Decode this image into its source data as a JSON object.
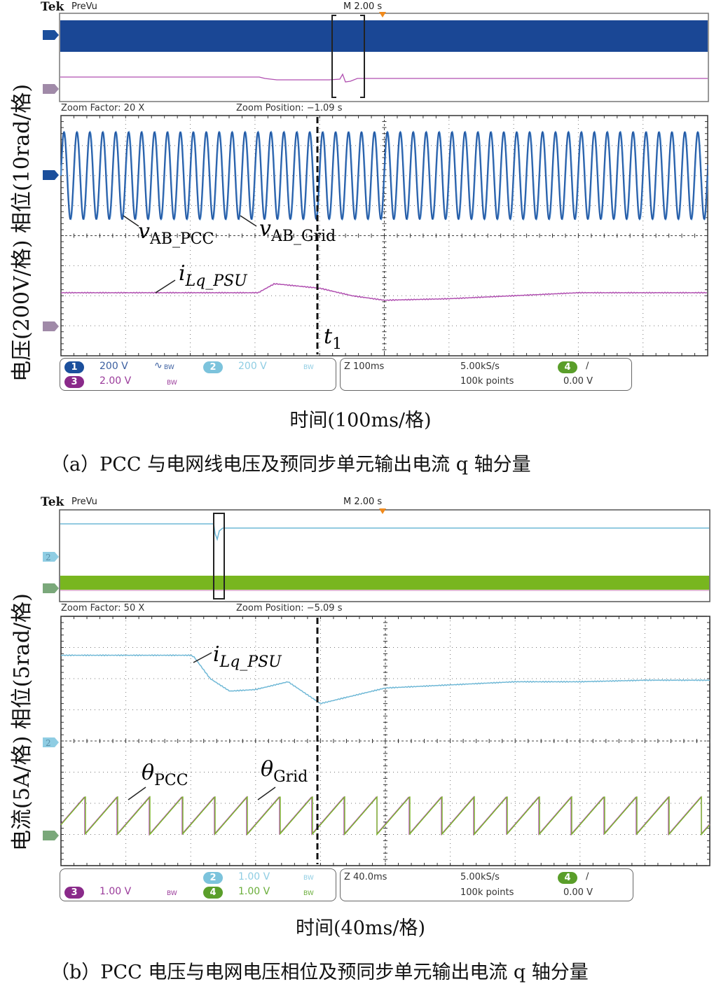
{
  "panel_a": {
    "header": {
      "brand": "Tek",
      "mode": "PreVu",
      "timebase": "M 2.00 s"
    },
    "zoom_info": {
      "factor": "Zoom Factor: 20 X",
      "position": "Zoom Position: −1.09 s"
    },
    "ylabel": "电压(200V/格)    相位(10rad/格)",
    "xlabel": "时间(100ms/格)",
    "caption": "（a）PCC 与电网线电压及预同步单元输出电流 q 轴分量",
    "annotations": {
      "v_pcc": "v",
      "v_pcc_sub": "AB_PCC",
      "v_grid": "v",
      "v_grid_sub": "AB_Grid",
      "i_lq": "i",
      "i_lq_sub": "Lq_PSU",
      "t1": "t",
      "t1_sub": "1"
    },
    "status": {
      "ch1": {
        "num": "1",
        "scale": "200 V",
        "coupling": "∿",
        "bw": "BW",
        "color": "#1b4f9c"
      },
      "ch2": {
        "num": "2",
        "scale": "200 V",
        "bw": "BW",
        "color": "#7cc3dc"
      },
      "ch3": {
        "num": "3",
        "scale": "2.00 V",
        "bw": "BW",
        "color": "#8a2a8a"
      },
      "horiz": {
        "zoom": "Z 100ms",
        "rate": "5.00kS/s",
        "points": "100k points"
      },
      "trigger": {
        "ch": "4",
        "slope": "∕",
        "level": "0.00 V",
        "color": "#5a9e2a"
      }
    },
    "markers": {
      "ch1": "1",
      "ch3": "3"
    }
  },
  "panel_b": {
    "header": {
      "brand": "Tek",
      "mode": "PreVu",
      "timebase": "M 2.00 s"
    },
    "zoom_info": {
      "factor": "Zoom Factor: 50 X",
      "position": "Zoom Position: −5.09 s"
    },
    "ylabel": "电流(5A/格)    相位(5rad/格)",
    "xlabel": "时间(40ms/格)",
    "caption": "（b）PCC 电压与电网电压相位及预同步单元输出电流 q 轴分量",
    "annotations": {
      "i_lq": "i",
      "i_lq_sub": "Lq_PSU",
      "theta_pcc": "θ",
      "theta_pcc_sub": "PCC",
      "theta_grid": "θ",
      "theta_grid_sub": "Grid"
    },
    "status": {
      "ch2": {
        "num": "2",
        "scale": "1.00 V",
        "bw": "BW",
        "color": "#7cc3dc"
      },
      "ch3": {
        "num": "3",
        "scale": "1.00 V",
        "bw": "BW",
        "color": "#8a2a8a"
      },
      "ch4": {
        "num": "4",
        "scale": "1.00 V",
        "bw": "BW",
        "color": "#5a9e2a"
      },
      "horiz": {
        "zoom": "Z 40.0ms",
        "rate": "5.00kS/s",
        "points": "100k points"
      },
      "trigger": {
        "ch": "4",
        "slope": "∕",
        "level": "0.00 V",
        "color": "#5a9e2a"
      }
    },
    "markers": {
      "ch2": "2",
      "ch4": "4"
    }
  },
  "chart_data": [
    {
      "type": "line",
      "title": "(a) PCC and grid line voltage, PSU output current q-axis component",
      "xlabel": "Time (100ms/div)",
      "ylabel": "Voltage (200V/div), Phase (10rad/div)",
      "x_divisions": 10,
      "y_divisions": 8,
      "grid": true,
      "x_unit_per_div_ms": 100,
      "series": [
        {
          "name": "v_AB_PCC",
          "kind": "sine",
          "frequency_hz": 50,
          "amplitude_div": 1.45,
          "offset_div": 6.0,
          "color": "#4a86c8"
        },
        {
          "name": "v_AB_Grid",
          "kind": "sine",
          "frequency_hz": 50,
          "amplitude_div": 1.45,
          "offset_div": 6.0,
          "color": "#1b4f9c"
        },
        {
          "name": "i_Lq_PSU",
          "kind": "line",
          "x_div": [
            0,
            3.0,
            3.05,
            3.3,
            4.0,
            4.5,
            5.0,
            6.0,
            7.0,
            8.0,
            9.0,
            10.0
          ],
          "y_div": [
            2.1,
            2.1,
            2.1,
            2.4,
            2.25,
            2.0,
            1.85,
            1.9,
            2.0,
            2.1,
            2.1,
            2.1
          ],
          "color": "#b04fb0"
        }
      ],
      "annotations": [
        {
          "label": "t1",
          "x_div": 4.0
        }
      ],
      "overview": {
        "ch1_band": true,
        "zoom_window_x_frac": [
          0.42,
          0.47
        ]
      }
    },
    {
      "type": "line",
      "title": "(b) PCC voltage and grid voltage phase, PSU output current q-axis component",
      "xlabel": "Time (40ms/div)",
      "ylabel": "Current (5A/div), Phase (5rad/div)",
      "x_divisions": 10,
      "y_divisions": 8,
      "grid": true,
      "x_unit_per_div_ms": 40,
      "series": [
        {
          "name": "i_Lq_PSU",
          "kind": "line",
          "x_div": [
            0,
            2.0,
            2.05,
            2.3,
            2.6,
            3.0,
            3.5,
            4.0,
            4.5,
            5.0,
            6.0,
            7.0,
            8.0,
            9.0,
            10.0
          ],
          "y_div": [
            6.75,
            6.75,
            6.7,
            6.0,
            5.6,
            5.65,
            5.9,
            5.2,
            5.45,
            5.7,
            5.8,
            5.9,
            5.9,
            5.95,
            5.95
          ],
          "color": "#6fb8d6"
        },
        {
          "name": "theta_PCC",
          "kind": "sawtooth",
          "frequency_hz": 50,
          "low_div": 1.0,
          "high_div": 2.2,
          "color": "#b04fb0"
        },
        {
          "name": "theta_Grid",
          "kind": "sawtooth",
          "frequency_hz": 50,
          "low_div": 1.0,
          "high_div": 2.2,
          "color": "#7cba2a"
        }
      ],
      "annotations": [
        {
          "label": "dashed marker",
          "x_div": 4.0
        }
      ],
      "overview": {
        "ch4_band": true,
        "zoom_window_x_frac": [
          0.24,
          0.26
        ]
      }
    }
  ]
}
